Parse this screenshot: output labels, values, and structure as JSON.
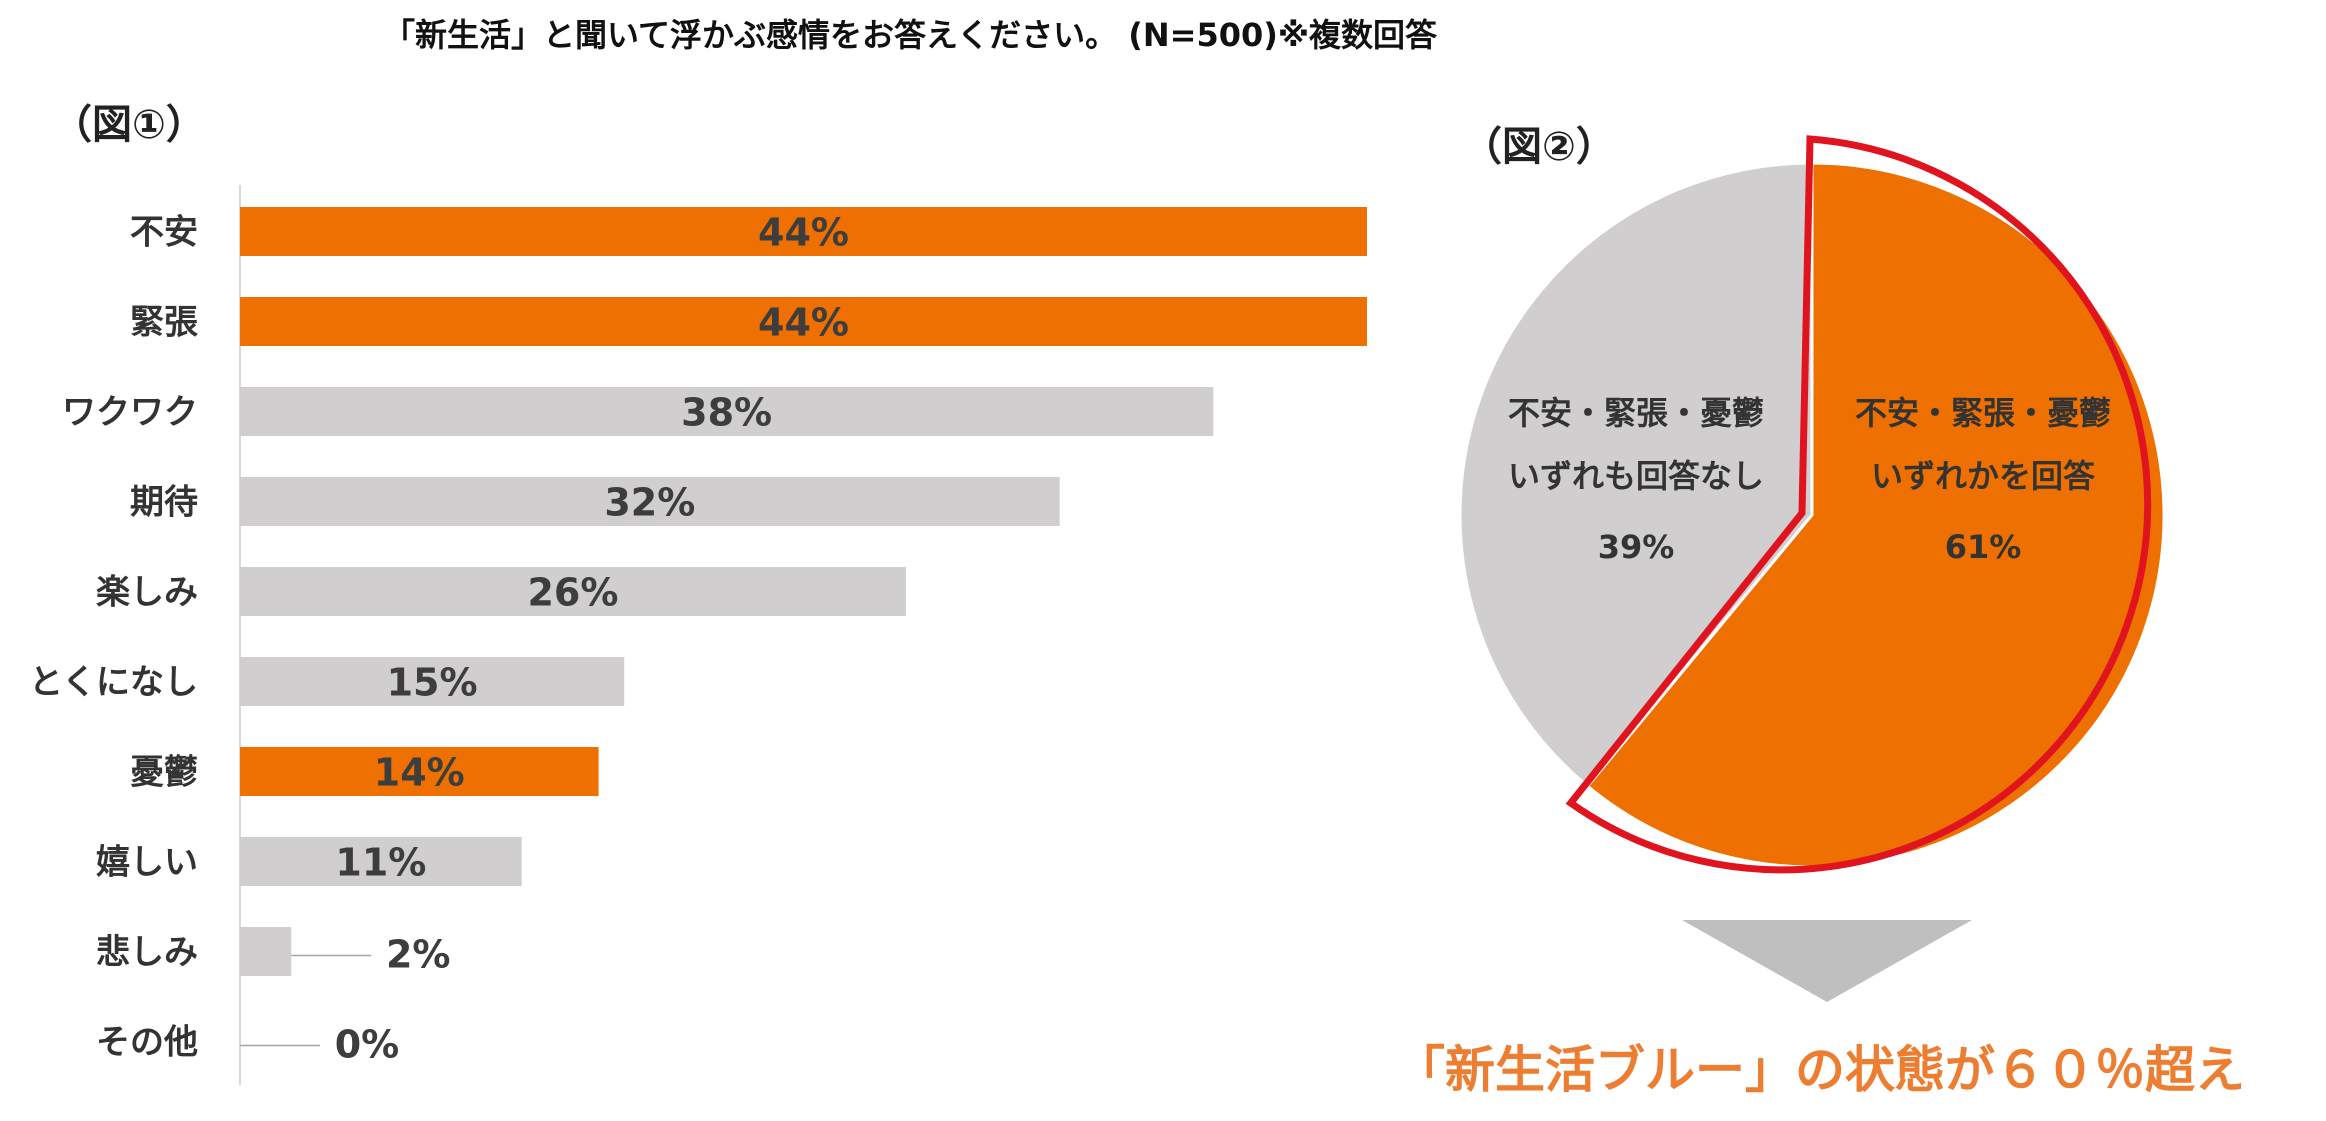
{
  "title": "「新生活」と聞いて浮かぶ感情をお答えください。 (N=500)※複数回答",
  "fig1_label": "（図①）",
  "fig2_label": "（図②）",
  "conclusion": "「新生活ブルー」の状態が６０％超え",
  "colors": {
    "highlight": "#ED7000",
    "neutral": "#D0CECE",
    "outline": "#E0141E",
    "arrow": "#BFBFBF",
    "conclusion": "#ED7D31"
  },
  "chart_data": [
    {
      "type": "bar",
      "orientation": "horizontal",
      "categories": [
        "不安",
        "緊張",
        "ワクワク",
        "期待",
        "楽しみ",
        "とくになし",
        "憂鬱",
        "嬉しい",
        "悲しみ",
        "その他"
      ],
      "values": [
        44,
        44,
        38,
        32,
        26,
        15,
        14,
        11,
        2,
        0
      ],
      "value_labels": [
        "44%",
        "44%",
        "38%",
        "32%",
        "26%",
        "15%",
        "14%",
        "11%",
        "2%",
        "0%"
      ],
      "highlighted": [
        true,
        true,
        false,
        false,
        false,
        false,
        true,
        false,
        false,
        false
      ],
      "grid": false
    },
    {
      "type": "pie",
      "slices": [
        {
          "label_lines": [
            "不安・緊張・憂鬱",
            "いずれかを回答"
          ],
          "value": 61,
          "value_label": "61%",
          "highlighted": true
        },
        {
          "label_lines": [
            "不安・緊張・憂鬱",
            "いずれも回答なし"
          ],
          "value": 39,
          "value_label": "39%",
          "highlighted": false
        }
      ]
    }
  ]
}
